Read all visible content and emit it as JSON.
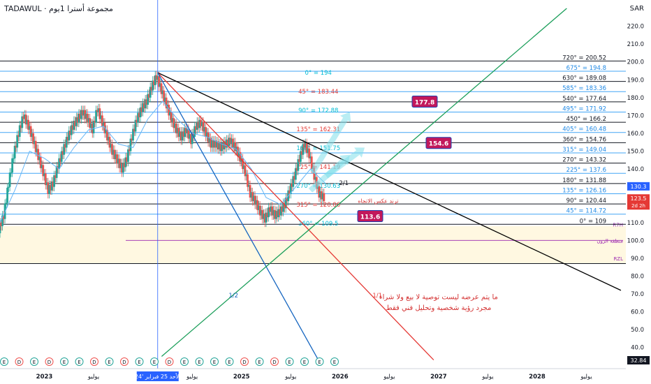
{
  "header": {
    "symbol_line": "TADAWUL · مجموعة أسترا 1يوم",
    "currency": "SAR"
  },
  "colors": {
    "bg": "#ffffff",
    "grid_line": "#131722",
    "blue_line": "#42a5f5",
    "gann_cyan": "#00bcd4",
    "gann_red": "#e53935",
    "gann_blue": "#1565c0",
    "ema": "#64b5f6",
    "candle_up": "#26a69a",
    "candle_down": "#ef5350",
    "zone_fill": "#fff8e1",
    "purple": "#9c27b0",
    "crimson": "#c2185b",
    "arrow": "#80deea",
    "green": "#2e7d32",
    "note_red": "#d32f2f"
  },
  "chart_data": {
    "type": "line",
    "title": "",
    "y_axis": {
      "min": 32.84,
      "max": 230,
      "ticks": [
        40,
        50,
        60,
        70,
        80,
        90,
        100,
        110,
        120,
        130,
        140,
        150,
        160,
        170,
        180,
        190,
        200,
        210,
        220
      ]
    },
    "x_axis": {
      "tick_labels": [
        {
          "t": 2023.0,
          "label": "2023"
        },
        {
          "t": 2023.5,
          "label": "يوليو"
        },
        {
          "t": 2024.5,
          "label": "يوليو"
        },
        {
          "t": 2025.0,
          "label": "2025"
        },
        {
          "t": 2025.5,
          "label": "يوليو"
        },
        {
          "t": 2026.0,
          "label": "2026"
        },
        {
          "t": 2026.5,
          "label": "يوليو"
        },
        {
          "t": 2027.0,
          "label": "2027"
        },
        {
          "t": 2027.5,
          "label": "يوليو"
        },
        {
          "t": 2028.0,
          "label": "2028"
        },
        {
          "t": 2028.5,
          "label": "يوليو"
        }
      ],
      "cursor_label": "الأحد 25 فبراير '24"
    },
    "right_levels": [
      {
        "value": 200.52,
        "label": "720° = 200.52",
        "style": "dark"
      },
      {
        "value": 194.8,
        "label": "675° = 194.8",
        "style": "cyan"
      },
      {
        "value": 189.08,
        "label": "630° = 189.08",
        "style": "dark"
      },
      {
        "value": 183.36,
        "label": "585° = 183.36",
        "style": "cyan"
      },
      {
        "value": 177.64,
        "label": "540° = 177.64",
        "style": "dark"
      },
      {
        "value": 171.92,
        "label": "495° = 171.92",
        "style": "cyan"
      },
      {
        "value": 166.2,
        "label": "450° = 166.2",
        "style": "dark"
      },
      {
        "value": 160.48,
        "label": "405° = 160.48",
        "style": "cyan"
      },
      {
        "value": 154.76,
        "label": "360° = 154.76",
        "style": "dark"
      },
      {
        "value": 149.04,
        "label": "315° = 149.04",
        "style": "cyan"
      },
      {
        "value": 143.32,
        "label": "270° = 143.32",
        "style": "dark"
      },
      {
        "value": 137.6,
        "label": "225° = 137.6",
        "style": "cyan"
      },
      {
        "value": 131.88,
        "label": "180° = 131.88",
        "style": "dark"
      },
      {
        "value": 126.16,
        "label": "135° = 126.16",
        "style": "cyan"
      },
      {
        "value": 120.44,
        "label": "90° = 120.44",
        "style": "dark"
      },
      {
        "value": 114.72,
        "label": "45° = 114.72",
        "style": "cyan"
      },
      {
        "value": 109,
        "label": "0° = 109",
        "style": "dark"
      }
    ],
    "center_levels": [
      {
        "value": 194,
        "label": "0° = 194",
        "color": "cyan"
      },
      {
        "value": 183.44,
        "label": "45° = 183.44",
        "color": "red"
      },
      {
        "value": 172.88,
        "label": "90° = 172.88",
        "color": "cyan"
      },
      {
        "value": 162.31,
        "label": "135° = 162.31",
        "color": "red"
      },
      {
        "value": 151.75,
        "label": "180° = 151.75",
        "color": "cyan"
      },
      {
        "value": 141.19,
        "label": "225° = 141.19",
        "color": "red"
      },
      {
        "value": 130.63,
        "label": "270° = 130.63",
        "color": "cyan"
      },
      {
        "value": 120.06,
        "label": "315° = 120.06",
        "color": "red"
      },
      {
        "value": 109.5,
        "label": "360° = 109.5",
        "color": "cyan"
      }
    ],
    "price_tags": [
      {
        "value": 130.3,
        "label": "130.3",
        "color": "#2962ff"
      },
      {
        "value": 123.5,
        "label": "123.5",
        "sub": "2d 2h",
        "color": "#e53935"
      },
      {
        "value": 32.84,
        "label": "32.84",
        "color": "#131722"
      }
    ],
    "callouts": [
      {
        "value": 177.8,
        "label": "177.8"
      },
      {
        "value": 154.6,
        "label": "154.6"
      },
      {
        "value": 113.6,
        "label": "113.6"
      }
    ],
    "zone": {
      "top": 108,
      "bottom": 87,
      "labels": [
        {
          "value": 109,
          "text": "R7H"
        },
        {
          "value": 100,
          "text": "منطقة الزون"
        },
        {
          "value": 90,
          "text": "RZL"
        }
      ]
    },
    "trend_lines": [
      {
        "name": "black-trend",
        "from": [
          2024.15,
          194
        ],
        "to": [
          2028.85,
          72
        ]
      },
      {
        "name": "red-fan-1x1",
        "from": [
          2024.15,
          194
        ],
        "to": [
          2026.95,
          33
        ]
      },
      {
        "name": "blue-fan-1x2",
        "from": [
          2024.15,
          194
        ],
        "to": [
          2025.78,
          33
        ]
      },
      {
        "name": "green-fan",
        "from": [
          2024.19,
          35
        ],
        "to": [
          2028.3,
          230
        ]
      }
    ],
    "line_labels": [
      {
        "t": 2024.87,
        "value": 68,
        "text": "1/2",
        "color": "blue"
      },
      {
        "t": 2026.33,
        "value": 68,
        "text": "1/1",
        "color": "red"
      },
      {
        "t": 2025.99,
        "value": 131,
        "text": "2/1",
        "color": "dark"
      }
    ],
    "annotations": {
      "trend_reversal": "ترند عكس الاتجاه",
      "disclaimer_line1": "ما يتم عرضه ليست توصية  لا بيع ولا شراء",
      "disclaimer_line2": "مجرد رؤية شخصية وتحليل فني  فقط"
    },
    "events": [
      "E",
      "D",
      "E",
      "D",
      "E",
      "E",
      "D",
      "E",
      "D",
      "E",
      "E",
      "D",
      "E",
      "E",
      "E",
      "E",
      "D",
      "E",
      "D",
      "E",
      "E",
      "E",
      "E"
    ],
    "series_close": [
      {
        "t": 2022.55,
        "v": 106
      },
      {
        "t": 2022.6,
        "v": 114
      },
      {
        "t": 2022.65,
        "v": 132
      },
      {
        "t": 2022.7,
        "v": 148
      },
      {
        "t": 2022.75,
        "v": 160
      },
      {
        "t": 2022.8,
        "v": 170
      },
      {
        "t": 2022.85,
        "v": 164
      },
      {
        "t": 2022.9,
        "v": 156
      },
      {
        "t": 2022.95,
        "v": 147
      },
      {
        "t": 2023.0,
        "v": 138
      },
      {
        "t": 2023.05,
        "v": 128
      },
      {
        "t": 2023.1,
        "v": 132
      },
      {
        "t": 2023.15,
        "v": 142
      },
      {
        "t": 2023.2,
        "v": 150
      },
      {
        "t": 2023.25,
        "v": 158
      },
      {
        "t": 2023.3,
        "v": 164
      },
      {
        "t": 2023.35,
        "v": 168
      },
      {
        "t": 2023.4,
        "v": 172
      },
      {
        "t": 2023.45,
        "v": 168
      },
      {
        "t": 2023.5,
        "v": 162
      },
      {
        "t": 2023.55,
        "v": 174
      },
      {
        "t": 2023.6,
        "v": 166
      },
      {
        "t": 2023.65,
        "v": 158
      },
      {
        "t": 2023.7,
        "v": 150
      },
      {
        "t": 2023.75,
        "v": 145
      },
      {
        "t": 2023.8,
        "v": 140
      },
      {
        "t": 2023.85,
        "v": 146
      },
      {
        "t": 2023.9,
        "v": 158
      },
      {
        "t": 2023.95,
        "v": 168
      },
      {
        "t": 2024.0,
        "v": 174
      },
      {
        "t": 2024.05,
        "v": 178
      },
      {
        "t": 2024.1,
        "v": 186
      },
      {
        "t": 2024.15,
        "v": 192
      },
      {
        "t": 2024.2,
        "v": 184
      },
      {
        "t": 2024.25,
        "v": 176
      },
      {
        "t": 2024.3,
        "v": 168
      },
      {
        "t": 2024.35,
        "v": 162
      },
      {
        "t": 2024.4,
        "v": 158
      },
      {
        "t": 2024.45,
        "v": 162
      },
      {
        "t": 2024.5,
        "v": 156
      },
      {
        "t": 2024.55,
        "v": 164
      },
      {
        "t": 2024.6,
        "v": 166
      },
      {
        "t": 2024.65,
        "v": 160
      },
      {
        "t": 2024.7,
        "v": 154
      },
      {
        "t": 2024.75,
        "v": 154
      },
      {
        "t": 2024.8,
        "v": 152
      },
      {
        "t": 2024.85,
        "v": 154
      },
      {
        "t": 2024.9,
        "v": 156
      },
      {
        "t": 2024.95,
        "v": 152
      },
      {
        "t": 2025.0,
        "v": 146
      },
      {
        "t": 2025.05,
        "v": 138
      },
      {
        "t": 2025.1,
        "v": 126
      },
      {
        "t": 2025.15,
        "v": 122
      },
      {
        "t": 2025.2,
        "v": 116
      },
      {
        "t": 2025.25,
        "v": 112
      },
      {
        "t": 2025.3,
        "v": 118
      },
      {
        "t": 2025.35,
        "v": 114
      },
      {
        "t": 2025.4,
        "v": 116
      },
      {
        "t": 2025.45,
        "v": 120
      },
      {
        "t": 2025.5,
        "v": 128
      },
      {
        "t": 2025.55,
        "v": 136
      },
      {
        "t": 2025.6,
        "v": 146
      },
      {
        "t": 2025.65,
        "v": 154
      },
      {
        "t": 2025.7,
        "v": 148
      },
      {
        "t": 2025.75,
        "v": 136
      },
      {
        "t": 2025.8,
        "v": 126
      },
      {
        "t": 2025.85,
        "v": 124
      }
    ],
    "series_ema": [
      {
        "t": 2022.55,
        "v": 110
      },
      {
        "t": 2022.7,
        "v": 128
      },
      {
        "t": 2022.85,
        "v": 150
      },
      {
        "t": 2023.0,
        "v": 146
      },
      {
        "t": 2023.15,
        "v": 140
      },
      {
        "t": 2023.3,
        "v": 152
      },
      {
        "t": 2023.45,
        "v": 162
      },
      {
        "t": 2023.6,
        "v": 164
      },
      {
        "t": 2023.75,
        "v": 154
      },
      {
        "t": 2023.9,
        "v": 152
      },
      {
        "t": 2024.05,
        "v": 168
      },
      {
        "t": 2024.2,
        "v": 178
      },
      {
        "t": 2024.35,
        "v": 168
      },
      {
        "t": 2024.5,
        "v": 160
      },
      {
        "t": 2024.65,
        "v": 158
      },
      {
        "t": 2024.8,
        "v": 154
      },
      {
        "t": 2024.95,
        "v": 151
      },
      {
        "t": 2025.1,
        "v": 140
      },
      {
        "t": 2025.25,
        "v": 124
      },
      {
        "t": 2025.4,
        "v": 120
      },
      {
        "t": 2025.55,
        "v": 130
      },
      {
        "t": 2025.7,
        "v": 140
      },
      {
        "t": 2025.85,
        "v": 132
      }
    ]
  }
}
